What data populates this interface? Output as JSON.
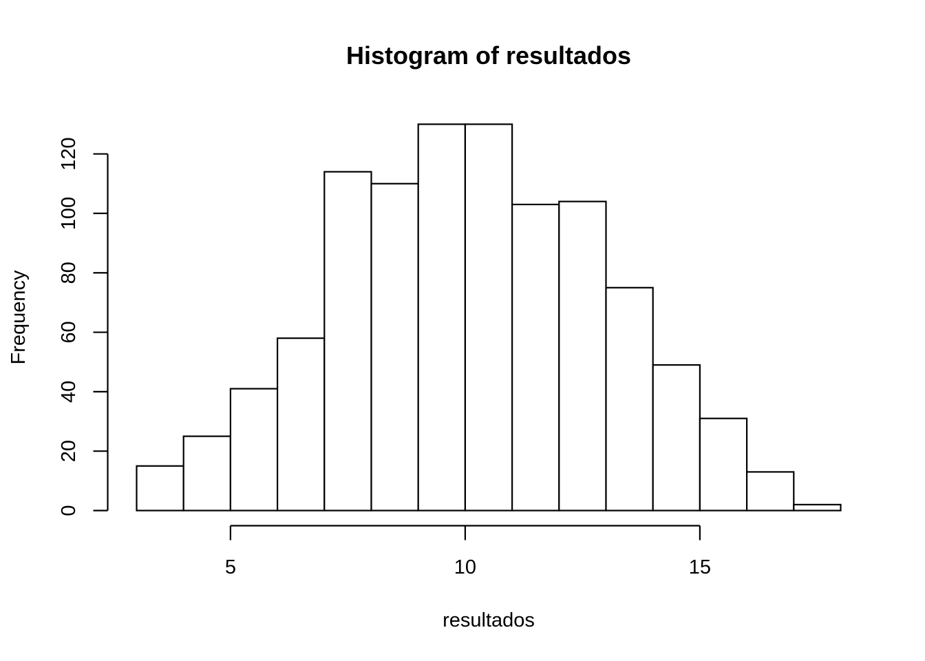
{
  "chart_data": {
    "type": "bar",
    "subtype": "histogram",
    "title": "Histogram of resultados",
    "xlabel": "resultados",
    "ylabel": "Frequency",
    "bin_edges": [
      3,
      4,
      5,
      6,
      7,
      8,
      9,
      10,
      11,
      12,
      13,
      14,
      15,
      16,
      17,
      18
    ],
    "values": [
      15,
      25,
      41,
      58,
      114,
      110,
      130,
      130,
      103,
      104,
      75,
      49,
      31,
      13,
      2
    ],
    "x_ticks": [
      5,
      10,
      15
    ],
    "x_tick_labels": [
      "5",
      "10",
      "15"
    ],
    "y_ticks": [
      0,
      20,
      40,
      60,
      80,
      100,
      120
    ],
    "y_tick_labels": [
      "0",
      "20",
      "40",
      "60",
      "80",
      "100",
      "120"
    ],
    "xlim": [
      3,
      18
    ],
    "ylim": [
      0,
      130
    ],
    "bar_fill": "#ffffff",
    "bar_stroke": "#000000",
    "grid": false,
    "legend": "none"
  }
}
